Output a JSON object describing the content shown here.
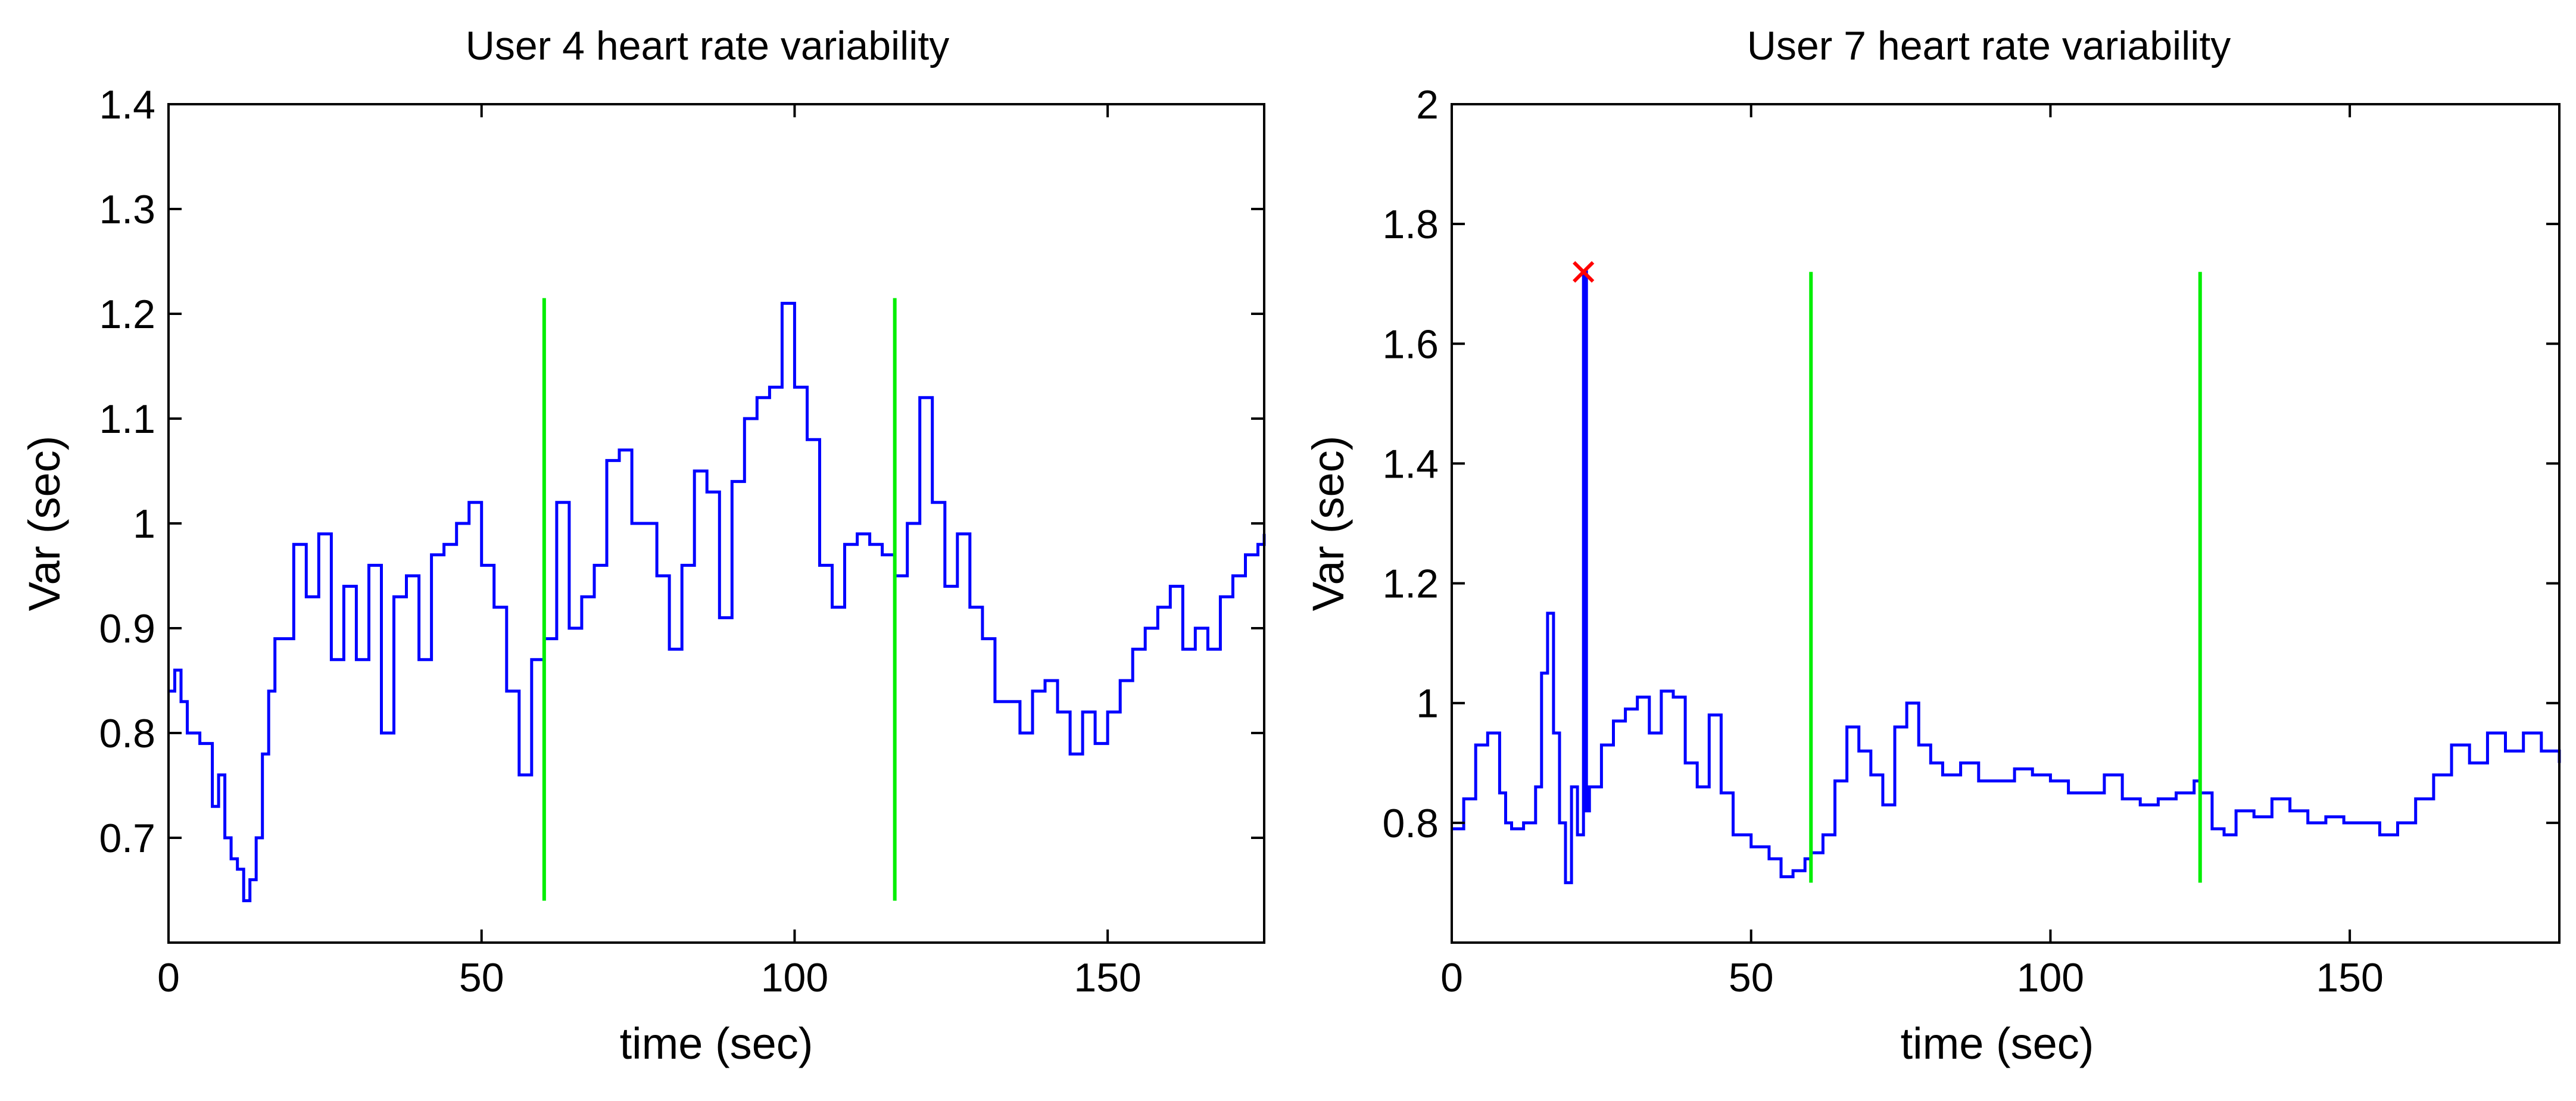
{
  "chart_data": [
    {
      "type": "line",
      "title": "User 4 heart rate variability",
      "xlabel": "time (sec)",
      "ylabel": "Var (sec)",
      "xlim": [
        0,
        175
      ],
      "ylim": [
        0.6,
        1.4
      ],
      "xticks": [
        0,
        50,
        100,
        150
      ],
      "yticks": [
        0.7,
        0.8,
        0.9,
        1,
        1.1,
        1.2,
        1.3,
        1.4
      ],
      "xtick_labels": [
        "0",
        "50",
        "100",
        "150"
      ],
      "ytick_labels": [
        "0.7",
        "0.8",
        "0.9",
        "1",
        "1.1",
        "1.2",
        "1.3",
        "1.4"
      ],
      "line_color": "#0000ff",
      "marker_color": "#00ee00",
      "series": [
        {
          "name": "heart rate variability",
          "x": [
            0,
            1,
            2,
            3,
            5,
            7,
            8,
            9,
            10,
            11,
            12,
            13,
            14,
            15,
            16,
            17,
            18,
            20,
            22,
            24,
            26,
            28,
            30,
            32,
            34,
            36,
            38,
            40,
            42,
            44,
            46,
            48,
            50,
            52,
            54,
            56,
            58,
            60,
            62,
            64,
            66,
            68,
            70,
            72,
            74,
            76,
            78,
            80,
            82,
            84,
            86,
            88,
            90,
            92,
            94,
            96,
            98,
            100,
            102,
            104,
            106,
            108,
            110,
            112,
            114,
            116,
            118,
            120,
            122,
            124,
            126,
            128,
            130,
            132,
            134,
            136,
            138,
            140,
            142,
            144,
            146,
            148,
            150,
            152,
            154,
            156,
            158,
            160,
            162,
            164,
            166,
            168,
            170,
            172,
            174,
            175
          ],
          "y": [
            0.84,
            0.86,
            0.83,
            0.8,
            0.79,
            0.73,
            0.76,
            0.7,
            0.68,
            0.67,
            0.64,
            0.66,
            0.7,
            0.78,
            0.84,
            0.89,
            0.89,
            0.98,
            0.93,
            0.99,
            0.87,
            0.94,
            0.87,
            0.96,
            0.8,
            0.93,
            0.95,
            0.87,
            0.97,
            0.98,
            1.0,
            1.02,
            0.96,
            0.92,
            0.84,
            0.76,
            0.87,
            0.89,
            1.02,
            0.9,
            0.93,
            0.96,
            1.06,
            1.07,
            1.0,
            1.0,
            0.95,
            0.88,
            0.96,
            1.05,
            1.03,
            0.91,
            1.04,
            1.1,
            1.12,
            1.13,
            1.21,
            1.13,
            1.08,
            0.96,
            0.92,
            0.98,
            0.99,
            0.98,
            0.97,
            0.95,
            1.0,
            1.12,
            1.02,
            0.94,
            0.99,
            0.92,
            0.89,
            0.83,
            0.83,
            0.8,
            0.84,
            0.85,
            0.82,
            0.78,
            0.82,
            0.79,
            0.82,
            0.85,
            0.88,
            0.9,
            0.92,
            0.94,
            0.88,
            0.9,
            0.88,
            0.93,
            0.95,
            0.97,
            0.98,
            0.99
          ]
        }
      ],
      "vlines": [
        {
          "x": 60,
          "y_from": 0.64,
          "y_to": 1.215
        },
        {
          "x": 116,
          "y_from": 0.64,
          "y_to": 1.215
        }
      ]
    },
    {
      "type": "line",
      "title": "User 7 heart rate variability",
      "xlabel": "time (sec)",
      "ylabel": "Var (sec)",
      "xlim": [
        0,
        185
      ],
      "ylim": [
        0.6,
        2.0
      ],
      "xticks": [
        0,
        50,
        100,
        150
      ],
      "yticks": [
        0.8,
        1,
        1.2,
        1.4,
        1.6,
        1.8,
        2
      ],
      "xtick_labels": [
        "0",
        "50",
        "100",
        "150"
      ],
      "ytick_labels": [
        "0.8",
        "1",
        "1.2",
        "1.4",
        "1.6",
        "1.8",
        "2"
      ],
      "line_color": "#0000ff",
      "marker_color": "#00ee00",
      "outlier_color": "#ff0000",
      "series": [
        {
          "name": "heart rate variability",
          "x": [
            0,
            2,
            4,
            6,
            8,
            9,
            10,
            12,
            14,
            15,
            16,
            17,
            18,
            19,
            20,
            21,
            22,
            22.5,
            23,
            25,
            27,
            29,
            31,
            33,
            35,
            37,
            39,
            41,
            43,
            45,
            47,
            50,
            53,
            55,
            57,
            59,
            60,
            62,
            64,
            66,
            68,
            70,
            72,
            74,
            76,
            78,
            80,
            82,
            85,
            88,
            91,
            94,
            97,
            100,
            103,
            106,
            109,
            112,
            115,
            118,
            121,
            124,
            125,
            127,
            129,
            131,
            134,
            137,
            140,
            143,
            146,
            149,
            152,
            155,
            158,
            161,
            164,
            167,
            170,
            173,
            176,
            179,
            182,
            185
          ],
          "y": [
            0.79,
            0.84,
            0.93,
            0.95,
            0.85,
            0.8,
            0.79,
            0.8,
            0.86,
            1.05,
            1.15,
            0.95,
            0.8,
            0.7,
            0.86,
            0.78,
            1.72,
            0.82,
            0.86,
            0.93,
            0.97,
            0.99,
            1.01,
            0.95,
            1.02,
            1.01,
            0.9,
            0.86,
            0.98,
            0.85,
            0.78,
            0.76,
            0.74,
            0.71,
            0.72,
            0.74,
            0.75,
            0.78,
            0.87,
            0.96,
            0.92,
            0.88,
            0.83,
            0.96,
            1.0,
            0.93,
            0.9,
            0.88,
            0.9,
            0.87,
            0.87,
            0.89,
            0.88,
            0.87,
            0.85,
            0.85,
            0.88,
            0.84,
            0.83,
            0.84,
            0.85,
            0.87,
            0.85,
            0.79,
            0.78,
            0.82,
            0.81,
            0.84,
            0.82,
            0.8,
            0.81,
            0.8,
            0.8,
            0.78,
            0.8,
            0.84,
            0.88,
            0.93,
            0.9,
            0.95,
            0.92,
            0.95,
            0.92,
            0.9
          ]
        }
      ],
      "vlines": [
        {
          "x": 60,
          "y_from": 0.7,
          "y_to": 1.72
        },
        {
          "x": 125,
          "y_from": 0.7,
          "y_to": 1.72
        }
      ],
      "outlier_marker": {
        "x": 22,
        "y": 1.72
      }
    }
  ]
}
